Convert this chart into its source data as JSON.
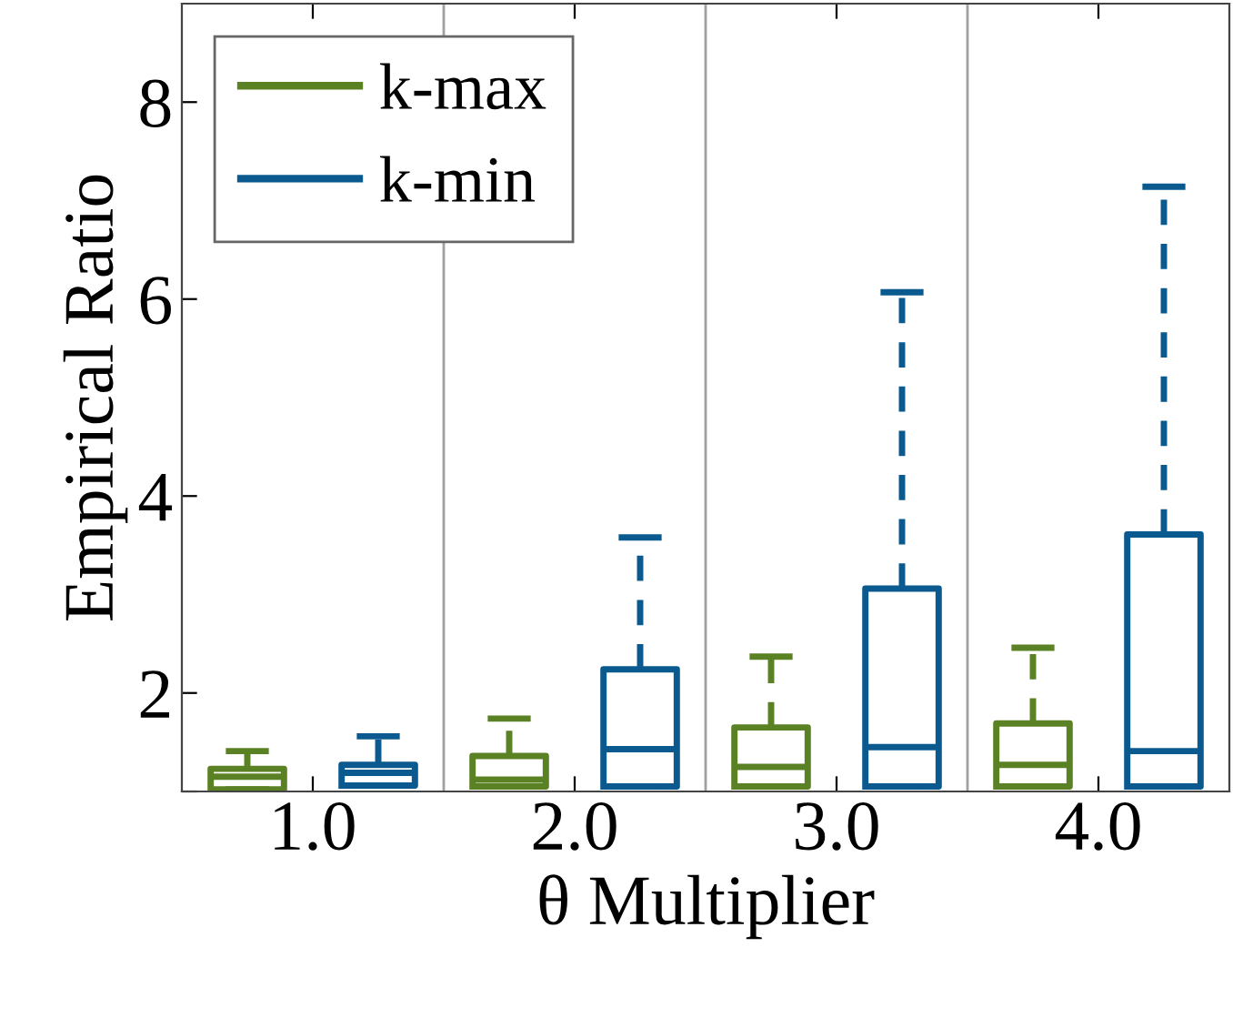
{
  "chart_data": {
    "type": "box",
    "xlabel": "θ Multiplier",
    "ylabel": "Empirical Ratio",
    "categories": [
      "1.0",
      "2.0",
      "3.0",
      "4.0"
    ],
    "ylim": [
      1,
      9
    ],
    "yticks": [
      {
        "value": 1,
        "label": null
      },
      2,
      4,
      6,
      8
    ],
    "legend": "top left",
    "grid": false,
    "line_style": "dashed",
    "series": [
      {
        "name": "k-max",
        "color": "#5b8125",
        "boxes": [
          {
            "low": 1.02,
            "q1": 1.02,
            "median": 1.15,
            "q3": 1.23,
            "high": 1.41
          },
          {
            "low": 1.05,
            "q1": 1.05,
            "median": 1.12,
            "q3": 1.36,
            "high": 1.74
          },
          {
            "low": 1.05,
            "q1": 1.05,
            "median": 1.25,
            "q3": 1.65,
            "high": 2.37
          },
          {
            "low": 1.05,
            "q1": 1.05,
            "median": 1.27,
            "q3": 1.69,
            "high": 2.46
          }
        ]
      },
      {
        "name": "k-min",
        "color": "#0b5a8f",
        "boxes": [
          {
            "low": 1.06,
            "q1": 1.06,
            "median": 1.19,
            "q3": 1.27,
            "high": 1.56
          },
          {
            "low": 1.05,
            "q1": 1.05,
            "median": 1.43,
            "q3": 2.24,
            "high": 3.58
          },
          {
            "low": 1.05,
            "q1": 1.05,
            "median": 1.45,
            "q3": 3.06,
            "high": 6.07
          },
          {
            "low": 1.05,
            "q1": 1.05,
            "median": 1.41,
            "q3": 3.61,
            "high": 7.14
          }
        ]
      }
    ]
  }
}
